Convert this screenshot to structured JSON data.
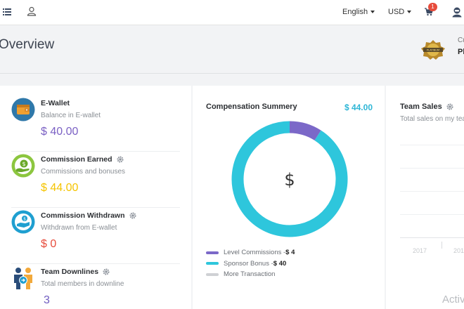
{
  "topbar": {
    "language": "English",
    "currency": "USD",
    "cart_count": "1"
  },
  "header": {
    "title": "Overview",
    "rank_label": "Cu",
    "rank_value": "Pl",
    "badge_text": "PLATINUM"
  },
  "summary": {
    "ewallet": {
      "title": "E-Wallet",
      "subtitle": "Balance in E-wallet",
      "value": "$ 40.00",
      "color": "#7b61c4"
    },
    "commission_earned": {
      "title": "Commission Earned",
      "subtitle": "Commissions and bonuses",
      "value": "$ 44.00",
      "color": "#f5c400"
    },
    "commission_withdrawn": {
      "title": "Commission Withdrawn",
      "subtitle": "Withdrawn from E-wallet",
      "value": "$ 0",
      "color": "#e74c3c"
    },
    "team_downlines": {
      "title": "Team Downlines",
      "subtitle": "Total members in downline",
      "value": "3",
      "color": "#6f5cc0"
    }
  },
  "compensation": {
    "title": "Compensation Summery",
    "total": "$ 44.00",
    "center_symbol": "$",
    "legend": [
      {
        "label": "Level Commissions - ",
        "amount": "$ 4",
        "color": "#7b68c8"
      },
      {
        "label": "Sponsor Bonus - ",
        "amount": "$ 40",
        "color": "#2ec6dc"
      },
      {
        "label": "More Transaction",
        "amount": "",
        "color": "#cfd1d4"
      }
    ]
  },
  "chart_data": {
    "type": "pie",
    "categories": [
      "Level Commissions",
      "Sponsor Bonus"
    ],
    "values": [
      4,
      40
    ],
    "title": "Compensation Summery",
    "colors": [
      "#7b68c8",
      "#2ec6dc"
    ]
  },
  "team_sales": {
    "title": "Team Sales",
    "subtitle": "Total sales on my tea",
    "x_ticks": [
      "2017",
      "201"
    ]
  },
  "watermark": "Activ"
}
